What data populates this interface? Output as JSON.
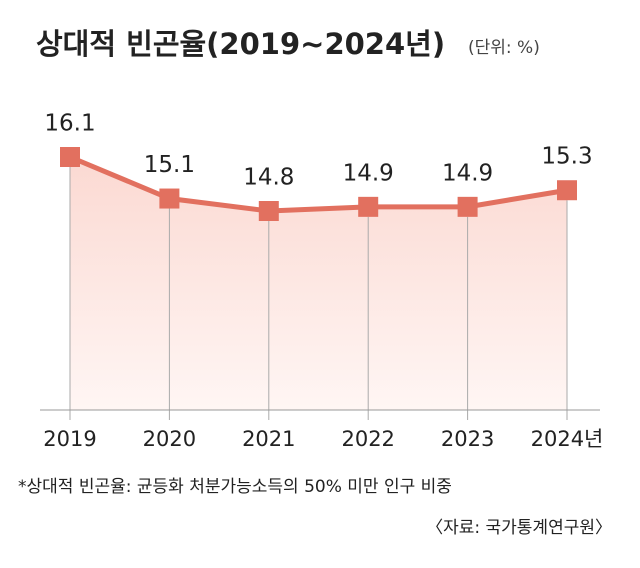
{
  "chart_data": {
    "type": "line",
    "title": "상대적 빈곤율(2019~2024년)",
    "subtitle": "(단위: %)",
    "categories": [
      "2019",
      "2020",
      "2021",
      "2022",
      "2023",
      "2024년"
    ],
    "values": [
      16.1,
      15.1,
      14.8,
      14.9,
      14.9,
      15.3
    ],
    "color": "#e2705f",
    "footnote": "*상대적 빈곤율: 균등화 처분가능소득의 50% 미만 인구 비중",
    "source": "〈자료: 국가통계연구원〉"
  }
}
